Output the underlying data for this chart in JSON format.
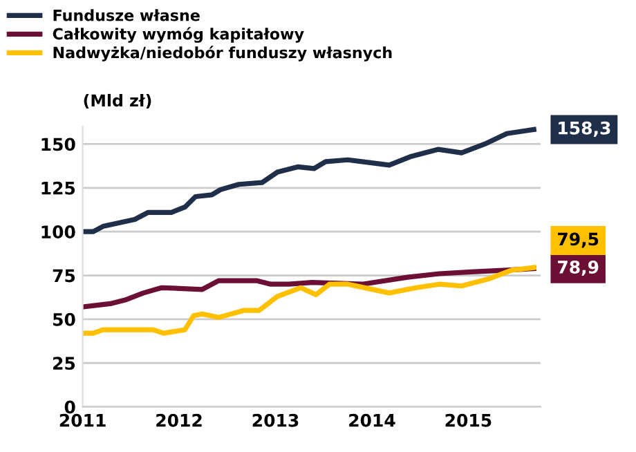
{
  "chart_data": {
    "type": "line",
    "ylabel": "(Mld zł)",
    "legend": "top left",
    "grid": "y",
    "line_style": "solid",
    "xlim": [
      2011,
      2015.75
    ],
    "xticks": [
      2011,
      2012,
      2013,
      2014,
      2015
    ],
    "ylim": [
      0,
      160
    ],
    "yticks": [
      0,
      25,
      50,
      75,
      100,
      125,
      150
    ],
    "series": [
      {
        "name": "Fundusze własne",
        "color": "#1f2f4a",
        "x": [
          2011.0,
          2011.11,
          2011.21,
          2011.54,
          2011.68,
          2011.92,
          2012.06,
          2012.17,
          2012.34,
          2012.43,
          2012.62,
          2012.86,
          2013.02,
          2013.23,
          2013.4,
          2013.52,
          2013.75,
          2014.18,
          2014.41,
          2014.69,
          2014.93,
          2015.17,
          2015.4,
          2015.68
        ],
        "values": [
          100,
          100,
          103,
          107,
          111,
          111,
          114,
          120,
          121,
          124,
          127,
          128,
          134,
          137,
          136,
          140,
          141,
          138,
          143,
          147,
          145,
          150,
          156,
          158.3
        ]
      },
      {
        "name": "Całkowity wymóg kapitałowy",
        "color": "#6b0f35",
        "x": [
          2011.0,
          2011.3,
          2011.44,
          2011.63,
          2011.82,
          2012.24,
          2012.41,
          2012.81,
          2012.95,
          2013.14,
          2013.38,
          2013.9,
          2014.37,
          2014.7,
          2015.03,
          2015.4,
          2015.68
        ],
        "values": [
          57,
          59,
          61,
          65,
          68,
          67,
          72,
          72,
          70,
          70,
          71,
          70,
          74,
          76,
          77,
          78,
          78.9
        ]
      },
      {
        "name": "Nadwyżka/niedobór funduszy własnych",
        "color": "#ffc000",
        "x": [
          2011.0,
          2011.11,
          2011.21,
          2011.44,
          2011.73,
          2011.84,
          2012.06,
          2012.15,
          2012.24,
          2012.41,
          2012.67,
          2012.83,
          2013.02,
          2013.26,
          2013.42,
          2013.56,
          2013.75,
          2014.18,
          2014.46,
          2014.7,
          2014.93,
          2015.21,
          2015.45,
          2015.68
        ],
        "values": [
          42,
          42,
          44,
          44,
          44,
          42,
          44,
          52,
          53,
          51,
          55,
          55,
          63,
          68,
          64,
          70,
          70,
          65,
          68,
          70,
          69,
          73,
          78,
          79.5
        ]
      }
    ],
    "annotations": [
      "158,3",
      "78,9",
      "79,5"
    ]
  }
}
